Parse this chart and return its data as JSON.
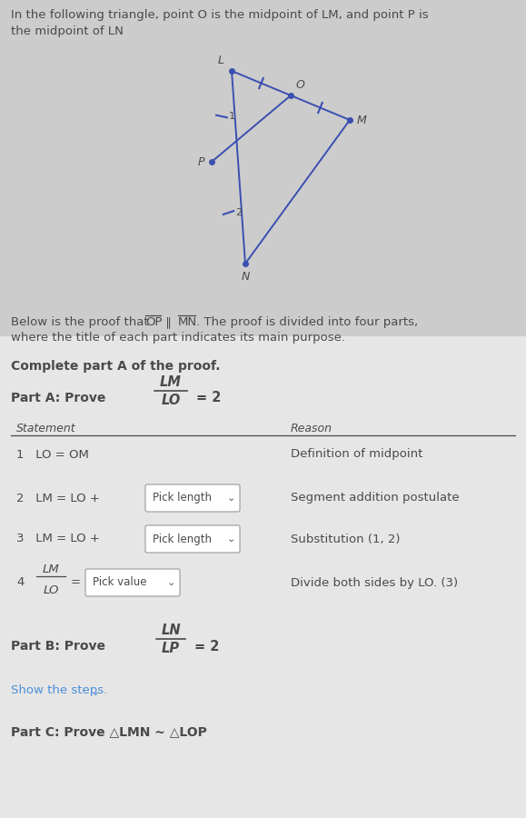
{
  "bg_color_top": "#c8c8c8",
  "bg_color_bottom": "#e8e8e8",
  "text_color": "#4a4a4a",
  "blue_color": "#3a5fc8",
  "link_color": "#4a90d9",
  "title_line1": "In the following triangle, point O is the midpoint of LM, and point P is",
  "title_line2": "the midpoint of LN",
  "intro_line1": "Below is the proof that",
  "intro_op": "OP",
  "intro_parallel": " ∥ ",
  "intro_mn": "MN",
  "intro_rest": ". The proof is divided into four parts,",
  "intro_line2": "where the title of each part indicates its main purpose.",
  "complete_text": "Complete part A of the proof.",
  "partA_prefix": "Part A: Prove",
  "partA_num": "LM",
  "partA_den": "LO",
  "partA_eq": "= 2",
  "stmt_header": "Statement",
  "reason_header": "Reason",
  "row1_stmt": "1   LO = OM",
  "row1_reason": "Definition of midpoint",
  "row2_prefix": "2   LM = LO +",
  "row2_box": "Pick length",
  "row2_reason": "Segment addition postulate",
  "row3_prefix": "3   LM = LO +",
  "row3_box": "Pick length",
  "row3_reason": "Substitution (1, 2)",
  "row4_num": "LM",
  "row4_den": "LO",
  "row4_eq": "=",
  "row4_box": "Pick value",
  "row4_reason": "Divide both sides by LO. (3)",
  "partB_prefix": "Part B: Prove",
  "partB_num": "LN",
  "partB_den": "LP",
  "partB_eq": "= 2",
  "show_steps": "Show the steps.",
  "partC_text": "Part C: Prove △LMN ~ △LOP"
}
